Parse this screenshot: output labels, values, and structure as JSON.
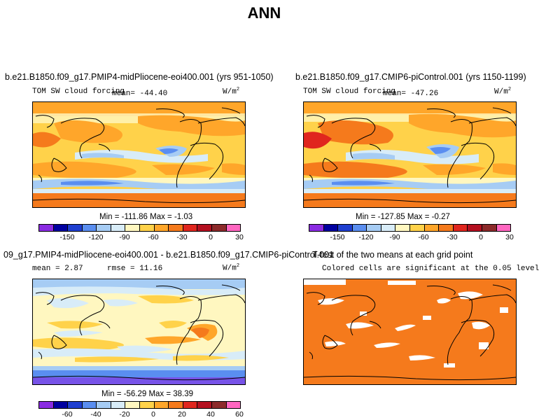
{
  "figure_title": "ANN",
  "panels": {
    "p1": {
      "title": "b.e21.B1850.f09_g17.PMIP4-midPliocene-eoi400.001 (yrs 951-1050)",
      "var_label": "TOM SW cloud forcing",
      "mean_label": "mean= -44.40",
      "units": "W/m",
      "units_sup": "2",
      "minmax": "Min = -111.86 Max = -1.03"
    },
    "p2": {
      "title": "b.e21.B1850.f09_g17.CMIP6-piControl.001 (yrs 1150-1199)",
      "var_label": "TOM SW cloud forcing",
      "mean_label": "mean= -47.26",
      "units": "W/m",
      "units_sup": "2",
      "minmax": "Min = -127.85 Max = -0.27"
    },
    "p3": {
      "title": "09_g17.PMIP4-midPliocene-eoi400.001 - b.e21.B1850.f09_g17.CMIP6-piControl.001",
      "mean_label": "mean =  2.87",
      "rmse_label": "rmse =  11.16",
      "units": "W/m",
      "units_sup": "2",
      "minmax": "Min = -56.29 Max = 38.39"
    },
    "p4": {
      "title": "T-test of the two means at each grid point",
      "subtitle": "Colored cells are significant at the 0.05 level"
    }
  },
  "colorbars": {
    "abs": {
      "colors": [
        "#8a2be2",
        "#0000a0",
        "#1f3fd0",
        "#5a8ef0",
        "#a6ccf4",
        "#d8ecf8",
        "#fff7c0",
        "#ffd24a",
        "#ffa62a",
        "#f57a1c",
        "#e0261e",
        "#b41020",
        "#8c2a2a",
        "#ff66c0"
      ],
      "ticks": [
        "-150",
        "-120",
        "-90",
        "-60",
        "-30",
        "0",
        "30"
      ]
    },
    "diff": {
      "colors": [
        "#8a2be2",
        "#0000a0",
        "#1f3fd0",
        "#5a8ef0",
        "#a6ccf4",
        "#d8ecf8",
        "#fff7c0",
        "#ffd24a",
        "#ffa62a",
        "#f57a1c",
        "#e0261e",
        "#b41020",
        "#8c2a2a",
        "#ff66c0"
      ],
      "ticks": [
        "-60",
        "-40",
        "-20",
        "0",
        "20",
        "40",
        "60"
      ]
    }
  }
}
